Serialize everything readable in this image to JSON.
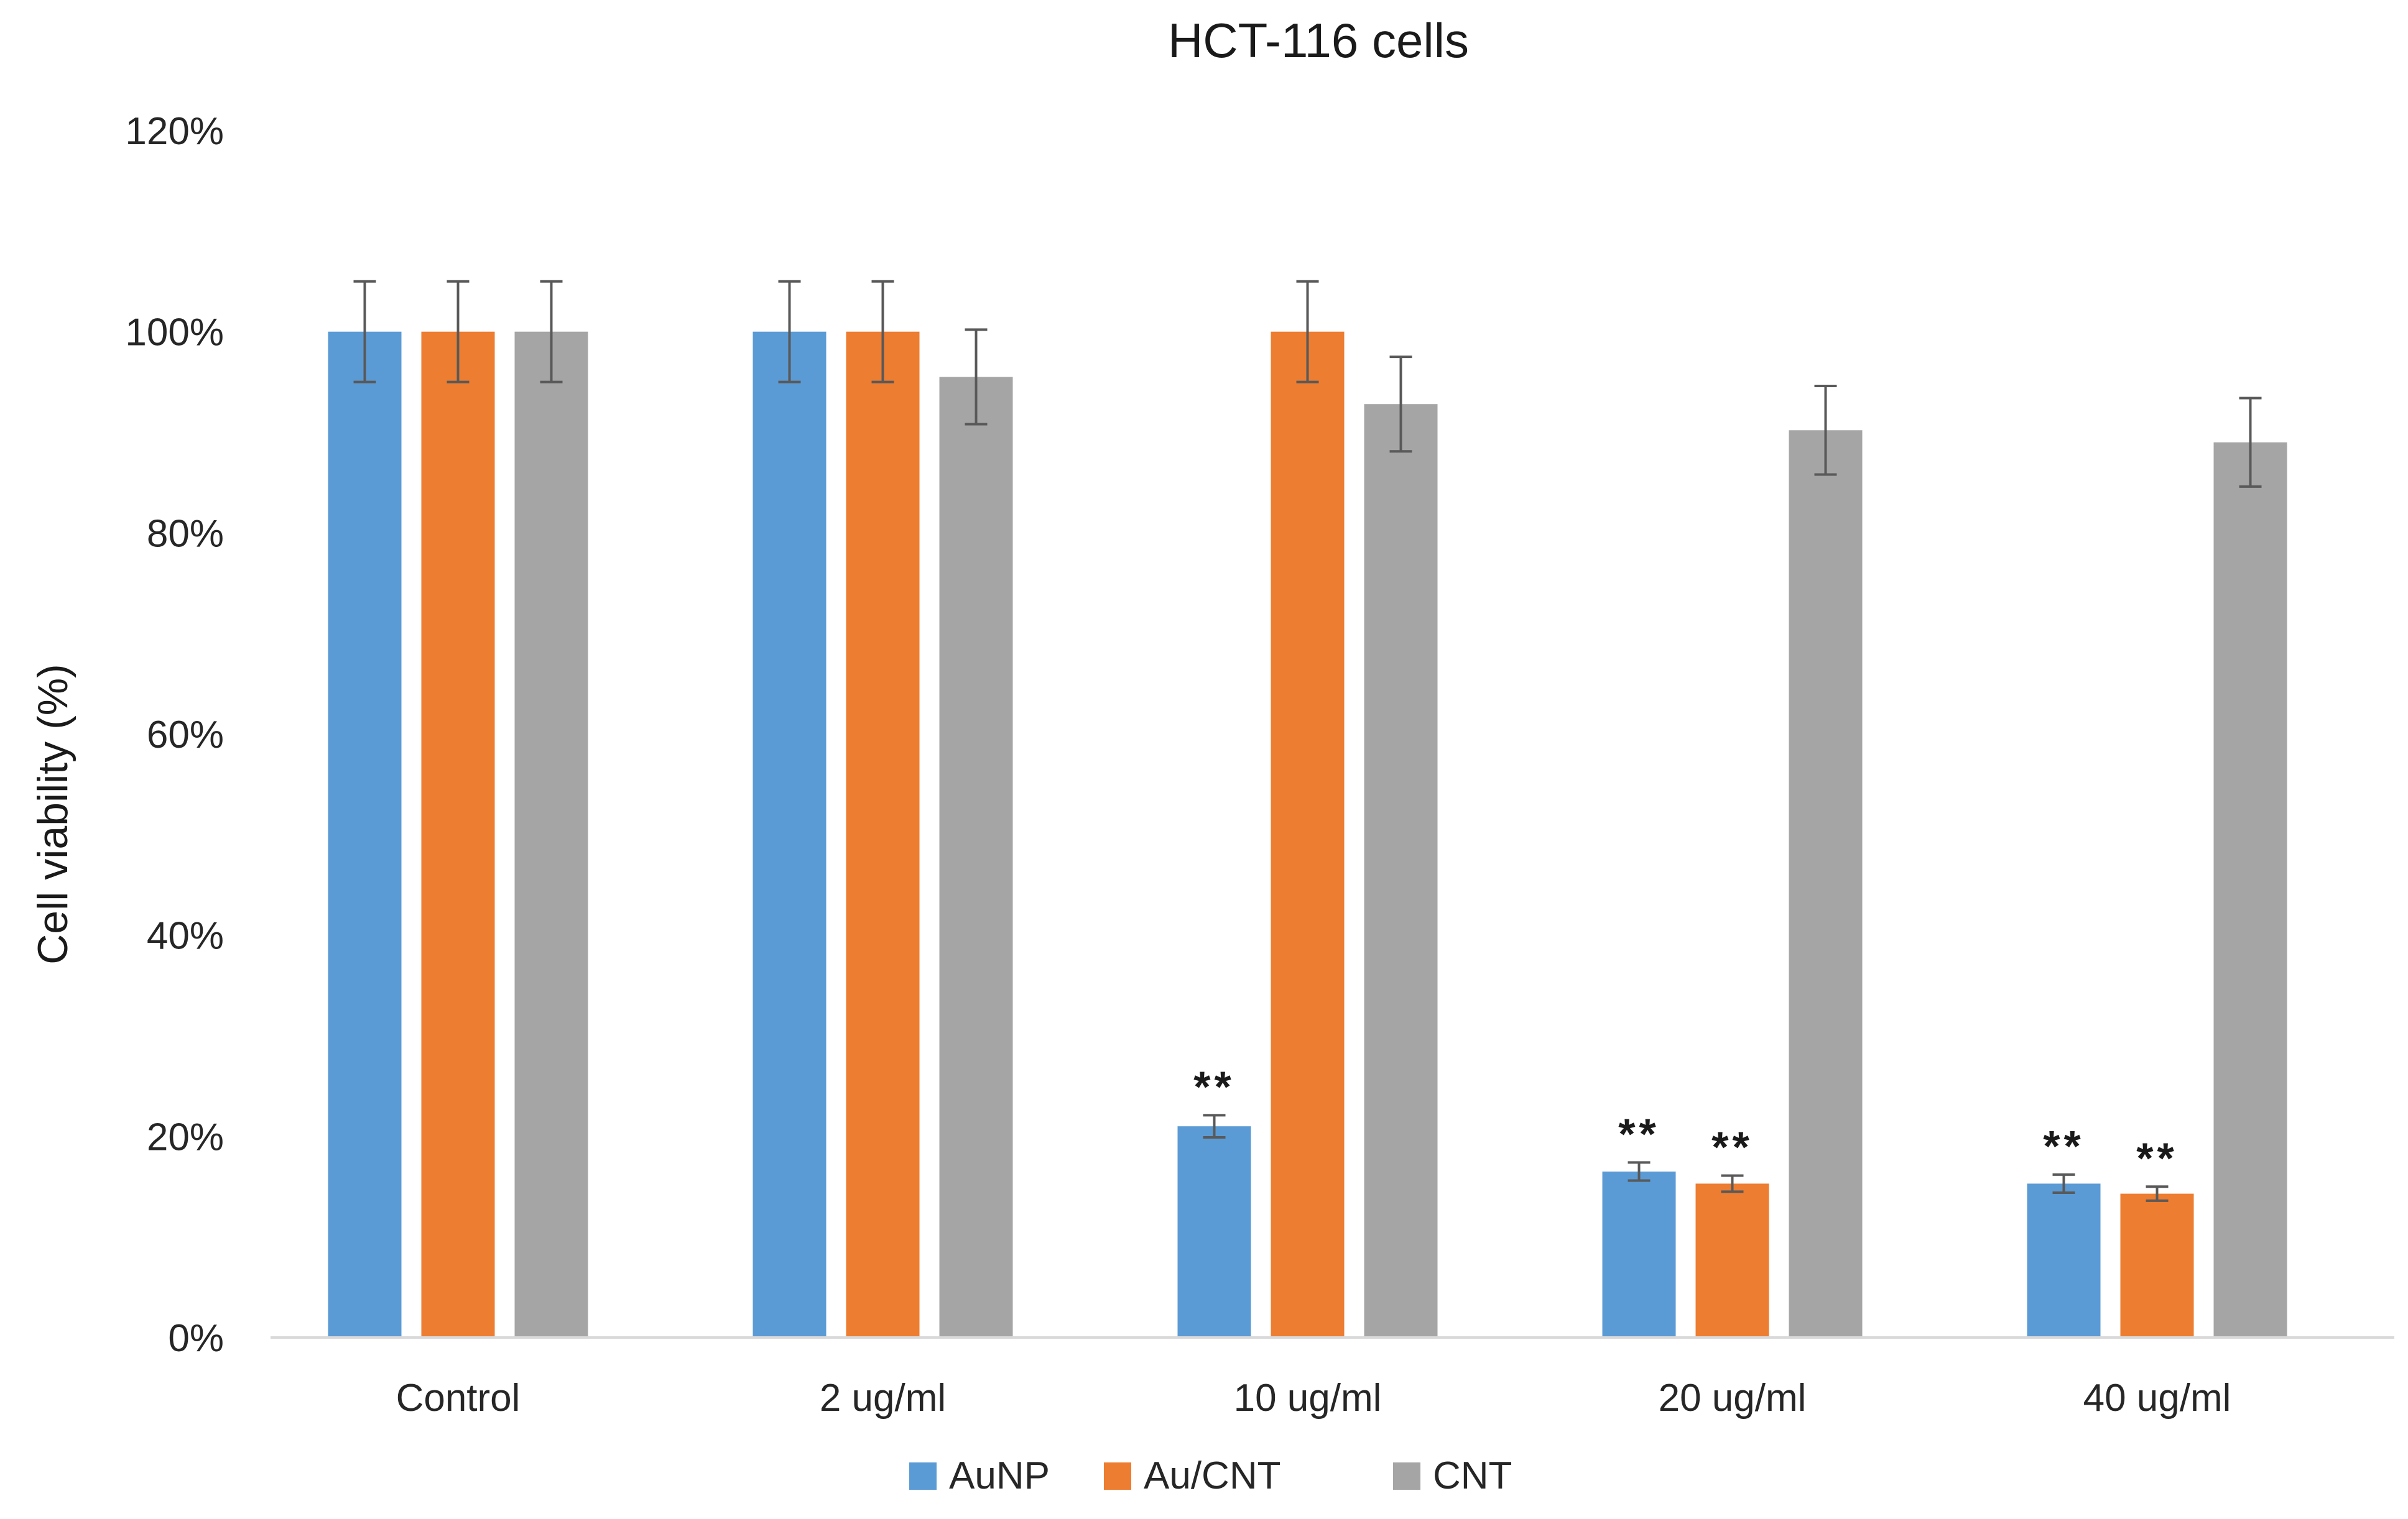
{
  "chart_data": {
    "type": "bar",
    "title": "HCT-116 cells",
    "xlabel": "",
    "ylabel": "Cell viability (%)",
    "ylim": [
      0,
      1.2
    ],
    "yticks": [
      0,
      0.2,
      0.4,
      0.6,
      0.8,
      1.0,
      1.2
    ],
    "ytick_labels": [
      "0%",
      "20%",
      "40%",
      "60%",
      "80%",
      "100%",
      "120%"
    ],
    "grid": false,
    "legend_position": "bottom",
    "categories": [
      "Control",
      "2 ug/ml",
      "10 ug/ml",
      "20 ug/ml",
      "40 ug/ml"
    ],
    "series": [
      {
        "name": "AuNP",
        "color": "#5b9bd5",
        "values": [
          1.0,
          1.0,
          0.21,
          0.165,
          0.153
        ],
        "errors": [
          0.05,
          0.05,
          0.011,
          0.009,
          0.009
        ],
        "annotations": [
          "",
          "",
          "**",
          "**",
          "**"
        ]
      },
      {
        "name": "Au/CNT",
        "color": "#ed7d31",
        "values": [
          1.0,
          1.0,
          1.0,
          0.153,
          0.143
        ],
        "errors": [
          0.05,
          0.05,
          0.05,
          0.008,
          0.007
        ],
        "annotations": [
          "",
          "",
          "",
          "**",
          "**"
        ]
      },
      {
        "name": "CNT",
        "color": "#a5a5a5",
        "values": [
          1.0,
          0.955,
          0.928,
          0.902,
          0.89
        ],
        "errors": [
          0.05,
          0.047,
          0.047,
          0.044,
          0.044
        ],
        "annotations": [
          "",
          "",
          "",
          "",
          ""
        ]
      }
    ]
  }
}
